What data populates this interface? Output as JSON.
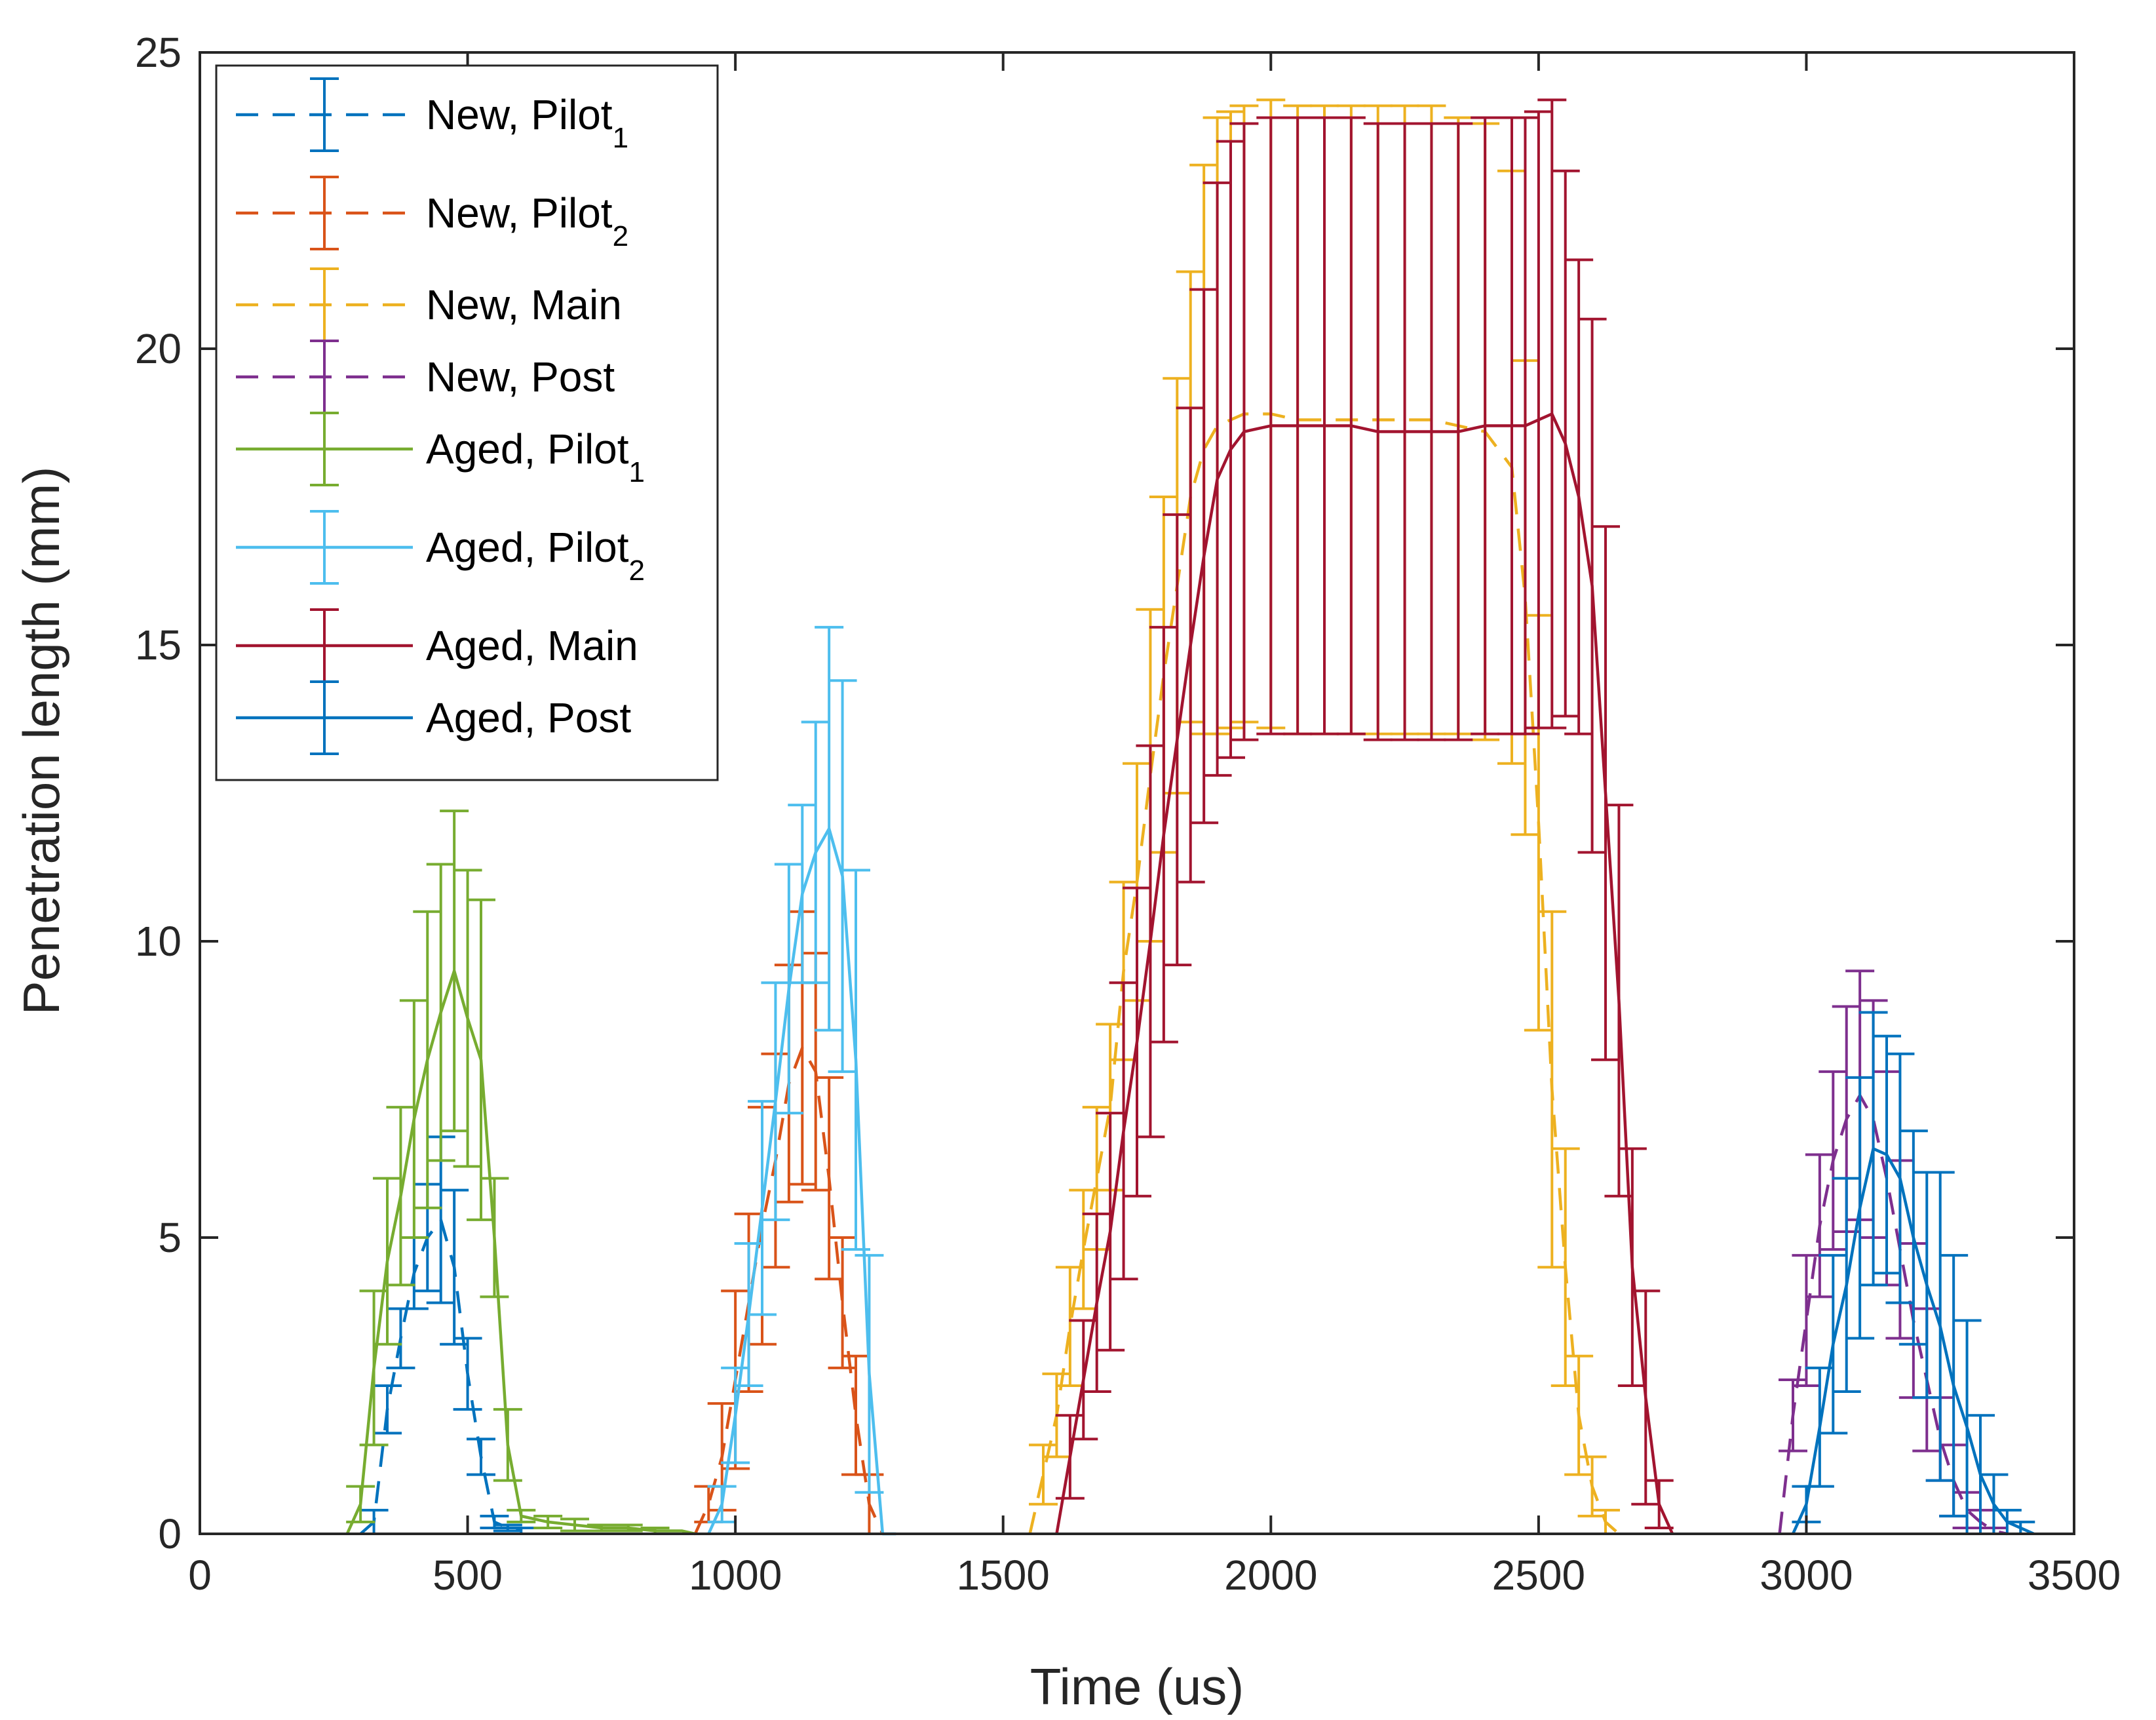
{
  "chart_data": {
    "type": "line",
    "title": "",
    "xlabel": "Time (us)",
    "ylabel": "Penetration length (mm)",
    "xlim": [
      0,
      3500
    ],
    "ylim": [
      0,
      25
    ],
    "xticks": [
      0,
      500,
      1000,
      1500,
      2000,
      2500,
      3000,
      3500
    ],
    "yticks": [
      0,
      5,
      10,
      15,
      20,
      25
    ],
    "legend_position": "top-left",
    "series": [
      {
        "name": "New, Pilot",
        "subscript": "1",
        "color": "#0072BD",
        "dash": "dashed",
        "x": [
          300,
          325,
          350,
          375,
          400,
          425,
          450,
          475,
          500,
          525,
          550,
          575,
          600
        ],
        "y": [
          0,
          0.2,
          2.1,
          3.3,
          4.4,
          5.0,
          5.3,
          4.5,
          2.7,
          1.3,
          0.2,
          0.1,
          0.05
        ],
        "err": [
          0,
          0.2,
          0.4,
          0.5,
          0.6,
          0.9,
          1.4,
          1.3,
          0.6,
          0.3,
          0.1,
          0.05,
          0.05
        ]
      },
      {
        "name": "New, Pilot",
        "subscript": "2",
        "color": "#D95319",
        "dash": "dashed",
        "x": [
          925,
          950,
          975,
          1000,
          1025,
          1050,
          1075,
          1100,
          1125,
          1150,
          1175,
          1200,
          1225,
          1250,
          1275
        ],
        "y": [
          0,
          0.5,
          1.3,
          2.6,
          3.9,
          5.2,
          6.3,
          7.6,
          8.2,
          7.8,
          6.0,
          3.9,
          2.0,
          0.5,
          0
        ],
        "err": [
          0,
          0.3,
          0.9,
          1.5,
          1.5,
          2.0,
          1.8,
          2.0,
          2.3,
          2.0,
          1.7,
          1.1,
          1.0,
          0.5,
          0
        ]
      },
      {
        "name": "New, Main",
        "subscript": "",
        "color": "#EDB120",
        "dash": "dashed",
        "x": [
          1550,
          1575,
          1600,
          1625,
          1650,
          1675,
          1700,
          1725,
          1750,
          1775,
          1800,
          1825,
          1850,
          1875,
          1900,
          1925,
          1950,
          2000,
          2050,
          2100,
          2150,
          2200,
          2250,
          2300,
          2350,
          2400,
          2450,
          2475,
          2500,
          2525,
          2550,
          2575,
          2600,
          2625,
          2650
        ],
        "y": [
          0,
          1.0,
          2.0,
          3.5,
          4.8,
          6.0,
          7.2,
          9.5,
          11.0,
          12.8,
          14.5,
          16.0,
          17.5,
          18.3,
          18.7,
          18.8,
          18.9,
          18.9,
          18.8,
          18.8,
          18.8,
          18.8,
          18.8,
          18.8,
          18.7,
          18.6,
          18.0,
          15.8,
          12.0,
          7.5,
          4.5,
          2.0,
          0.8,
          0.2,
          0
        ],
        "err": [
          0,
          0.5,
          0.7,
          1.0,
          1.0,
          1.2,
          1.4,
          1.5,
          2.0,
          2.8,
          3.0,
          3.5,
          3.8,
          4.8,
          5.2,
          5.2,
          5.2,
          5.3,
          5.3,
          5.3,
          5.3,
          5.3,
          5.3,
          5.3,
          5.2,
          5.2,
          5.0,
          4.0,
          3.5,
          3.0,
          2.0,
          1.0,
          0.5,
          0.2,
          0
        ]
      },
      {
        "name": "New, Post",
        "subscript": "",
        "color": "#7E2F8E",
        "dash": "dashed",
        "x": [
          2950,
          2975,
          3000,
          3025,
          3050,
          3075,
          3100,
          3125,
          3150,
          3175,
          3200,
          3225,
          3250,
          3275,
          3300,
          3325,
          3350,
          3375
        ],
        "y": [
          0,
          2.0,
          3.6,
          5.2,
          6.3,
          7.0,
          7.4,
          7.0,
          6.0,
          4.8,
          3.6,
          2.6,
          1.6,
          0.9,
          0.4,
          0.2,
          0.05,
          0
        ],
        "err": [
          0,
          0.6,
          1.1,
          1.2,
          1.5,
          1.9,
          2.1,
          2.0,
          1.8,
          1.5,
          1.3,
          1.2,
          0.7,
          0.6,
          0.3,
          0.2,
          0.05,
          0
        ]
      },
      {
        "name": "Aged, Pilot",
        "subscript": "1",
        "color": "#77AC30",
        "dash": "solid",
        "x": [
          275,
          300,
          325,
          350,
          375,
          400,
          425,
          450,
          475,
          500,
          525,
          550,
          575,
          600,
          650,
          700,
          750,
          800,
          850,
          900,
          925
        ],
        "y": [
          0,
          0.5,
          2.8,
          4.6,
          5.7,
          7.0,
          8.0,
          8.8,
          9.5,
          8.7,
          8.0,
          5.0,
          1.5,
          0.3,
          0.2,
          0.15,
          0.1,
          0.1,
          0.05,
          0.05,
          0
        ],
        "err": [
          0,
          0.3,
          1.3,
          1.4,
          1.5,
          2.0,
          2.5,
          2.5,
          2.7,
          2.5,
          2.7,
          1.0,
          0.6,
          0.1,
          0.1,
          0.1,
          0.05,
          0.05,
          0.05,
          0,
          0
        ]
      },
      {
        "name": "Aged, Pilot",
        "subscript": "2",
        "color": "#4DBEEE",
        "dash": "solid",
        "x": [
          950,
          975,
          1000,
          1025,
          1050,
          1075,
          1100,
          1125,
          1150,
          1175,
          1200,
          1225,
          1250,
          1275,
          1300
        ],
        "y": [
          0,
          0.5,
          2.0,
          3.7,
          5.5,
          7.3,
          9.2,
          10.8,
          11.5,
          11.9,
          11.1,
          8.0,
          2.7,
          0,
          0
        ],
        "err": [
          0,
          0.3,
          0.8,
          1.2,
          1.8,
          2.0,
          2.1,
          1.5,
          2.2,
          3.4,
          3.3,
          3.2,
          2.0,
          0,
          0
        ]
      },
      {
        "name": "Aged, Main",
        "subscript": "",
        "color": "#A2142F",
        "dash": "solid",
        "x": [
          1600,
          1625,
          1650,
          1675,
          1700,
          1725,
          1750,
          1775,
          1800,
          1825,
          1850,
          1875,
          1900,
          1925,
          1950,
          2000,
          2050,
          2100,
          2150,
          2200,
          2250,
          2300,
          2350,
          2400,
          2450,
          2475,
          2500,
          2525,
          2550,
          2575,
          2600,
          2625,
          2650,
          2675,
          2700,
          2725,
          2750
        ],
        "y": [
          0,
          1.3,
          2.6,
          3.9,
          5.1,
          6.8,
          8.3,
          10.0,
          11.8,
          13.4,
          15.0,
          16.5,
          17.8,
          18.3,
          18.6,
          18.7,
          18.7,
          18.7,
          18.7,
          18.6,
          18.6,
          18.6,
          18.6,
          18.7,
          18.7,
          18.7,
          18.8,
          18.9,
          18.4,
          17.5,
          16.0,
          12.5,
          9.0,
          4.5,
          2.3,
          0.5,
          0
        ],
        "err": [
          0,
          0.7,
          1.0,
          1.5,
          2.0,
          2.5,
          2.6,
          3.3,
          3.5,
          3.8,
          4.0,
          4.5,
          5.0,
          5.2,
          5.2,
          5.2,
          5.2,
          5.2,
          5.2,
          5.2,
          5.2,
          5.2,
          5.2,
          5.2,
          5.2,
          5.2,
          5.2,
          5.3,
          4.6,
          4.0,
          4.5,
          4.5,
          3.3,
          2.0,
          1.8,
          0.4,
          0
        ]
      },
      {
        "name": "Aged, Post",
        "subscript": "",
        "color": "#0072BD",
        "dash": "solid",
        "x": [
          2975,
          3000,
          3025,
          3050,
          3075,
          3100,
          3125,
          3150,
          3175,
          3200,
          3225,
          3250,
          3275,
          3300,
          3325,
          3350,
          3375,
          3400,
          3425
        ],
        "y": [
          0,
          0.5,
          1.8,
          3.2,
          4.2,
          5.5,
          6.5,
          6.4,
          6.0,
          5.0,
          4.2,
          3.5,
          2.5,
          1.8,
          1.0,
          0.5,
          0.2,
          0.1,
          0
        ],
        "err": [
          0,
          0.3,
          1.0,
          1.5,
          1.8,
          2.2,
          2.3,
          2.0,
          2.1,
          1.8,
          1.9,
          2.6,
          2.2,
          1.8,
          1.0,
          0.5,
          0.2,
          0.1,
          0
        ]
      }
    ]
  }
}
